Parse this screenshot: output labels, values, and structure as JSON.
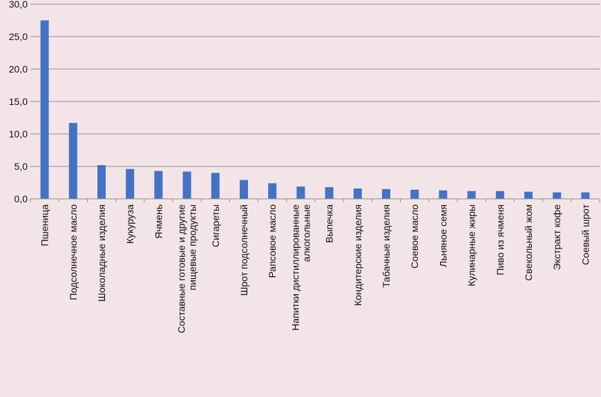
{
  "chart_data": {
    "type": "bar",
    "categories": [
      "Пшеница",
      "Подсолнечное масло",
      "Шоколадные изделия",
      "Кукуруза",
      "Ячмень",
      "Составные готовые и другие пищевые продукты",
      "Сигареты",
      "Шрот подсолнечный",
      "Рапсовое масло",
      "Напитки дистиллированные алкогольные",
      "Выпечка",
      "Кондитерские изделия",
      "Табачные изделия",
      "Соевое масло",
      "Льняное семя",
      "Кулинарные жиры",
      "Пиво из ячменя",
      "Свекольный жом",
      "Экстракт кофе",
      "Соевый шрот"
    ],
    "values": [
      27.5,
      11.7,
      5.2,
      4.6,
      4.3,
      4.2,
      4.0,
      2.9,
      2.4,
      1.9,
      1.8,
      1.6,
      1.5,
      1.4,
      1.3,
      1.2,
      1.2,
      1.1,
      1.0,
      1.0
    ],
    "ylim": [
      0,
      30
    ],
    "yticks": [
      "0,0",
      "5,0",
      "10,0",
      "15,0",
      "20,0",
      "25,0",
      "30,0"
    ],
    "grid": true,
    "colors": {
      "bar": "#4472c4",
      "background": "#f3e5e7",
      "grid": "#8c8c8c",
      "axis": "#8c8c8c"
    }
  }
}
